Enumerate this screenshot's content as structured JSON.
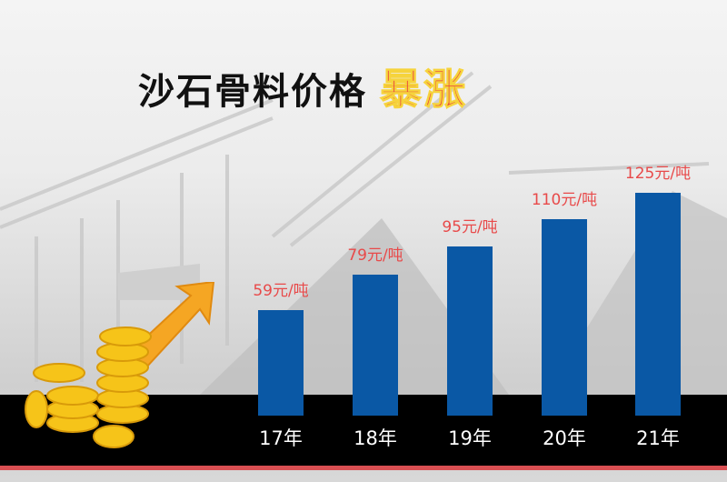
{
  "title": {
    "main": "沙石骨料价格",
    "highlight": "暴涨"
  },
  "colors": {
    "bar": "#0a58a5",
    "value_label": "#e84a4a",
    "highlight": "#e8413d",
    "band": "#000000",
    "red_line": "#d94f52"
  },
  "chart_data": {
    "type": "bar",
    "categories": [
      "17年",
      "18年",
      "19年",
      "20年",
      "21年"
    ],
    "values": [
      59,
      79,
      95,
      110,
      125
    ],
    "unit": "元/吨",
    "data_labels": [
      "59元/吨",
      "79元/吨",
      "95元/吨",
      "110元/吨",
      "125元/吨"
    ],
    "grid": false
  }
}
